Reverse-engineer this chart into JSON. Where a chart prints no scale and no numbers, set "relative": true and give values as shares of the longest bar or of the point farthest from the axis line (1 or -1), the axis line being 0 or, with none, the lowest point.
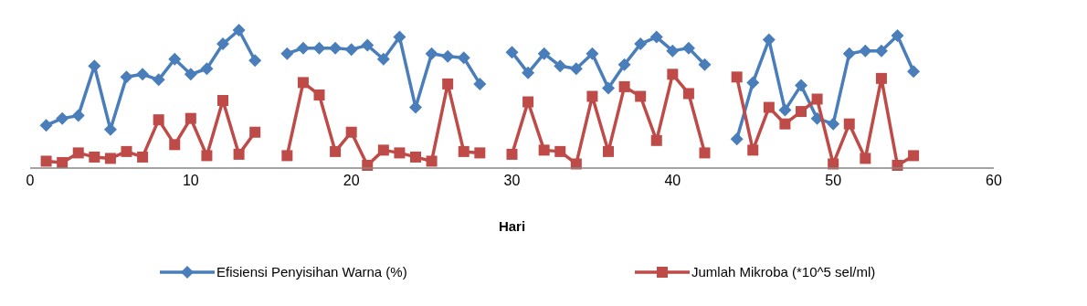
{
  "chart_data": {
    "type": "line",
    "relative": true,
    "xlabel": "Hari",
    "xlim": [
      0,
      60
    ],
    "xticks": [
      0,
      10,
      20,
      30,
      40,
      50,
      60
    ],
    "legend": "bottom",
    "grid": false,
    "x": [
      1,
      2,
      3,
      4,
      5,
      6,
      7,
      8,
      9,
      10,
      11,
      12,
      13,
      14,
      15,
      16,
      17,
      18,
      19,
      20,
      21,
      22,
      23,
      24,
      25,
      26,
      27,
      28,
      29,
      30,
      31,
      32,
      33,
      34,
      35,
      36,
      37,
      38,
      39,
      40,
      41,
      42,
      43,
      44,
      45,
      46,
      47,
      48,
      49,
      50,
      51,
      52,
      53,
      54,
      55
    ],
    "series": [
      {
        "name": "Efisiensi Penyisihan Warna (%)",
        "color": "#4a7ebb",
        "marker": "diamond",
        "values": [
          0.31,
          0.36,
          0.38,
          0.74,
          0.28,
          0.66,
          0.68,
          0.64,
          0.79,
          0.68,
          0.72,
          0.9,
          1,
          0.78,
          null,
          0.83,
          0.87,
          0.87,
          0.87,
          0.86,
          0.89,
          0.79,
          0.95,
          0.44,
          0.83,
          0.81,
          0.8,
          0.61,
          null,
          0.84,
          0.69,
          0.83,
          0.74,
          0.72,
          0.83,
          0.58,
          0.75,
          0.9,
          0.95,
          0.85,
          0.87,
          0.75,
          null,
          0.21,
          0.62,
          0.93,
          0.42,
          0.6,
          0.36,
          0.32,
          0.83,
          0.85,
          0.85,
          0.96,
          0.7
        ]
      },
      {
        "name": "Jumlah Mikroba (*10^5 sel/ml)",
        "color": "#be4b48",
        "marker": "square",
        "values": [
          0.05,
          0.04,
          0.11,
          0.08,
          0.07,
          0.12,
          0.08,
          0.35,
          0.17,
          0.36,
          0.09,
          0.49,
          0.1,
          0.26,
          null,
          0.09,
          0.62,
          0.53,
          0.12,
          0.26,
          0.02,
          0.13,
          0.11,
          0.08,
          0.05,
          0.61,
          0.12,
          0.11,
          null,
          0.1,
          0.48,
          0.13,
          0.12,
          0.03,
          0.52,
          0.12,
          0.59,
          0.52,
          0.2,
          0.68,
          0.54,
          0.11,
          null,
          0.66,
          0.13,
          0.44,
          0.32,
          0.41,
          0.5,
          0.03,
          0.32,
          0.07,
          0.65,
          0.02,
          0.09
        ]
      }
    ]
  }
}
